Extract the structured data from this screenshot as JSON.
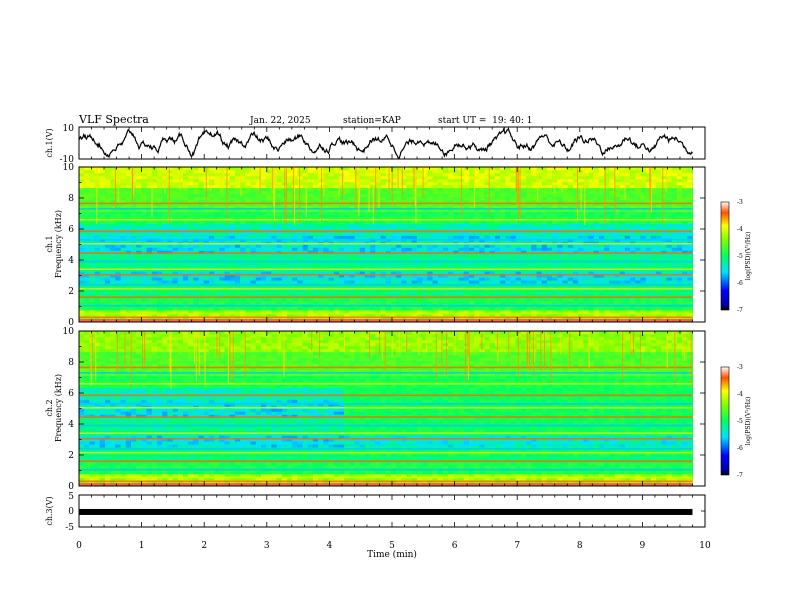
{
  "header": {
    "title": "VLF Spectra",
    "date": "Jan. 22, 2025",
    "station": "station=KAP",
    "start": "start UT =  19: 40: 1"
  },
  "chart_data": [
    {
      "name": "ch1-waveform",
      "type": "line",
      "ylabel": "ch.1(V)",
      "ylim": [
        -10,
        10
      ],
      "y_ticks": [
        "10",
        "-10"
      ]
    },
    {
      "name": "ch1-spectrogram",
      "type": "heatmap",
      "ylabel_top": "ch.1",
      "ylabel": "Frequency (kHz)",
      "ylim": [
        0,
        10
      ],
      "y_ticks": [
        "0",
        "2",
        "4",
        "6",
        "8",
        "10"
      ],
      "colorbar": {
        "label": "log(PSD)(V²/Hz)",
        "range": [
          -7,
          -3
        ],
        "ticks": [
          "-3",
          "-4",
          "-5",
          "-6",
          "-7"
        ]
      }
    },
    {
      "name": "ch2-spectrogram",
      "type": "heatmap",
      "ylabel_top": "ch.2",
      "ylabel": "Frequency (kHz)",
      "ylim": [
        0,
        10
      ],
      "y_ticks": [
        "0",
        "2",
        "4",
        "6",
        "8",
        "10"
      ],
      "colorbar": {
        "label": "log(PSD)(V²/Hz)",
        "range": [
          -7,
          -3
        ],
        "ticks": [
          "-3",
          "-4",
          "-5",
          "-6",
          "-7"
        ]
      }
    },
    {
      "name": "ch3-waveform",
      "type": "line",
      "ylabel": "ch.3(V)",
      "ylim": [
        -5,
        5
      ],
      "y_ticks": [
        "5",
        "0",
        "-5"
      ],
      "x": [
        0,
        9.8
      ],
      "y": [
        -0.3,
        -0.3
      ]
    }
  ],
  "x_axis": {
    "label": "Time (min)",
    "range": [
      0,
      10
    ],
    "ticks": [
      "0",
      "1",
      "2",
      "3",
      "4",
      "5",
      "6",
      "7",
      "8",
      "9",
      "10"
    ],
    "data_end": 9.8
  }
}
